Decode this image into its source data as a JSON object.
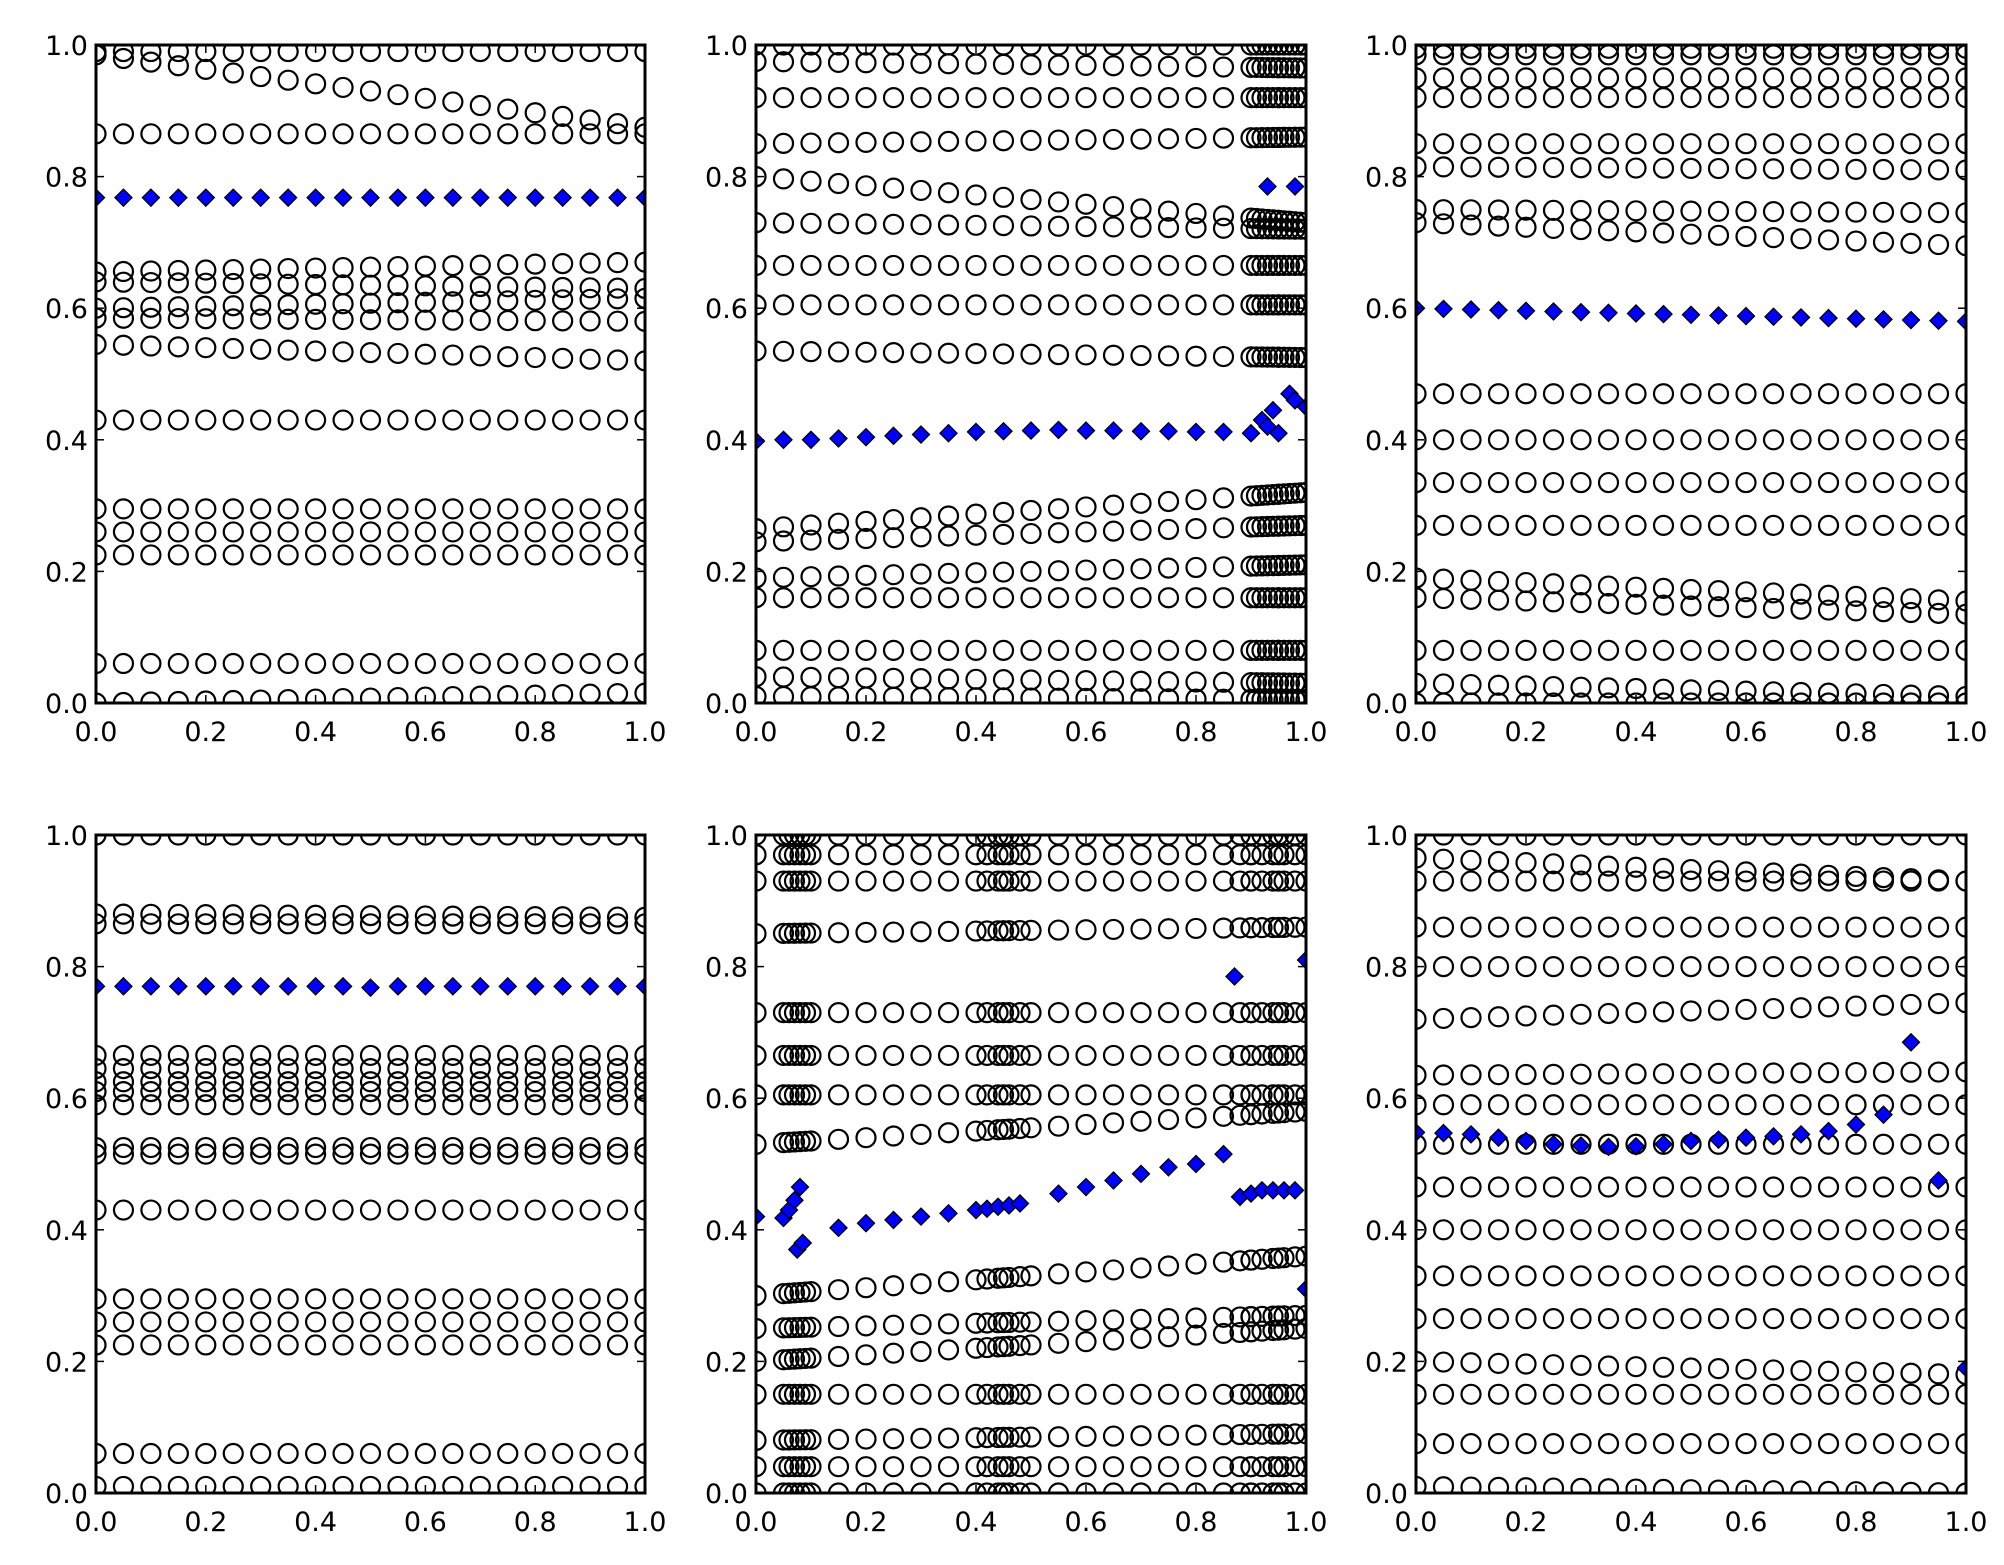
{
  "chart_data": [
    {
      "type": "scatter",
      "title": "",
      "xlabel": "",
      "ylabel": "",
      "xlim": [
        0,
        1
      ],
      "ylim": [
        0,
        1
      ],
      "grid": false,
      "xticks": [
        "0.0",
        "0.2",
        "0.4",
        "0.6",
        "0.8",
        "1.0"
      ],
      "yticks": [
        "0.0",
        "0.2",
        "0.4",
        "0.6",
        "0.8",
        "1.0"
      ],
      "circle_rows": [
        [
          0.99,
          0.99
        ],
        [
          0.985,
          0.875
        ],
        [
          0.865,
          0.865
        ],
        [
          0.655,
          0.67
        ],
        [
          0.64,
          0.63
        ],
        [
          0.6,
          0.615
        ],
        [
          0.585,
          0.58
        ],
        [
          0.545,
          0.52
        ],
        [
          0.43,
          0.43
        ],
        [
          0.295,
          0.295
        ],
        [
          0.26,
          0.26
        ],
        [
          0.225,
          0.225
        ],
        [
          0.06,
          0.06
        ],
        [
          0.0,
          0.015
        ]
      ],
      "dense_x": [],
      "diamonds": {
        "x": [
          0,
          0.05,
          0.1,
          0.15,
          0.2,
          0.25,
          0.3,
          0.35,
          0.4,
          0.45,
          0.5,
          0.55,
          0.6,
          0.65,
          0.7,
          0.75,
          0.8,
          0.85,
          0.9,
          0.95,
          1.0
        ],
        "y": [
          0.768,
          0.768,
          0.768,
          0.768,
          0.768,
          0.768,
          0.768,
          0.768,
          0.768,
          0.768,
          0.768,
          0.768,
          0.768,
          0.768,
          0.768,
          0.768,
          0.768,
          0.768,
          0.768,
          0.768,
          0.768
        ]
      },
      "colors": {
        "circle": "#000000",
        "diamond": "#0000ff"
      }
    },
    {
      "type": "scatter",
      "title": "",
      "xlabel": "",
      "ylabel": "",
      "xlim": [
        0,
        1
      ],
      "ylim": [
        0,
        1
      ],
      "grid": false,
      "xticks": [
        "0.0",
        "0.2",
        "0.4",
        "0.6",
        "0.8",
        "1.0"
      ],
      "yticks": [
        "0.0",
        "0.2",
        "0.4",
        "0.6",
        "0.8",
        "1.0"
      ],
      "circle_rows": [
        [
          1.0,
          1.0
        ],
        [
          0.975,
          0.965
        ],
        [
          0.92,
          0.92
        ],
        [
          0.85,
          0.86
        ],
        [
          0.8,
          0.73
        ],
        [
          0.73,
          0.72
        ],
        [
          0.665,
          0.665
        ],
        [
          0.605,
          0.605
        ],
        [
          0.535,
          0.525
        ],
        [
          0.265,
          0.32
        ],
        [
          0.245,
          0.27
        ],
        [
          0.19,
          0.21
        ],
        [
          0.16,
          0.16
        ],
        [
          0.08,
          0.08
        ],
        [
          0.04,
          0.03
        ],
        [
          0.01,
          0.005
        ]
      ],
      "dense_x": [
        0.91,
        0.92,
        0.93,
        0.94,
        0.95,
        0.96,
        0.97,
        0.98,
        0.99,
        1.0
      ],
      "diamonds": {
        "x": [
          0,
          0.05,
          0.1,
          0.15,
          0.2,
          0.25,
          0.3,
          0.35,
          0.4,
          0.45,
          0.5,
          0.55,
          0.6,
          0.65,
          0.7,
          0.75,
          0.8,
          0.85,
          0.9,
          0.92,
          0.93,
          0.94,
          0.95,
          0.97,
          0.98,
          1.0,
          0.93,
          0.98
        ],
        "y": [
          0.398,
          0.4,
          0.4,
          0.402,
          0.404,
          0.406,
          0.408,
          0.41,
          0.412,
          0.413,
          0.414,
          0.415,
          0.414,
          0.414,
          0.413,
          0.413,
          0.412,
          0.412,
          0.41,
          0.43,
          0.42,
          0.445,
          0.41,
          0.47,
          0.46,
          0.45,
          0.785,
          0.785
        ]
      },
      "colors": {
        "circle": "#000000",
        "diamond": "#0000ff"
      }
    },
    {
      "type": "scatter",
      "title": "",
      "xlabel": "",
      "ylabel": "",
      "xlim": [
        0,
        1
      ],
      "ylim": [
        0,
        1
      ],
      "grid": false,
      "xticks": [
        "0.0",
        "0.2",
        "0.4",
        "0.6",
        "0.8",
        "1.0"
      ],
      "yticks": [
        "0.0",
        "0.2",
        "0.4",
        "0.6",
        "0.8",
        "1.0"
      ],
      "circle_rows": [
        [
          0.995,
          0.995
        ],
        [
          0.985,
          0.985
        ],
        [
          0.95,
          0.95
        ],
        [
          0.92,
          0.92
        ],
        [
          0.85,
          0.85
        ],
        [
          0.815,
          0.81
        ],
        [
          0.75,
          0.745
        ],
        [
          0.73,
          0.695
        ],
        [
          0.47,
          0.47
        ],
        [
          0.4,
          0.4
        ],
        [
          0.335,
          0.335
        ],
        [
          0.27,
          0.27
        ],
        [
          0.19,
          0.155
        ],
        [
          0.16,
          0.135
        ],
        [
          0.08,
          0.08
        ],
        [
          0.03,
          0.01
        ],
        [
          0.0,
          0.0
        ]
      ],
      "dense_x": [],
      "diamonds": {
        "x": [
          0,
          0.05,
          0.1,
          0.15,
          0.2,
          0.25,
          0.3,
          0.35,
          0.4,
          0.45,
          0.5,
          0.55,
          0.6,
          0.65,
          0.7,
          0.75,
          0.8,
          0.85,
          0.9,
          0.95,
          1.0
        ],
        "y": [
          0.6,
          0.599,
          0.598,
          0.597,
          0.596,
          0.595,
          0.594,
          0.593,
          0.592,
          0.591,
          0.59,
          0.589,
          0.588,
          0.587,
          0.586,
          0.585,
          0.584,
          0.583,
          0.582,
          0.581,
          0.58
        ]
      },
      "colors": {
        "circle": "#000000",
        "diamond": "#0000ff"
      }
    },
    {
      "type": "scatter",
      "title": "",
      "xlabel": "",
      "ylabel": "",
      "xlim": [
        0,
        1
      ],
      "ylim": [
        0,
        1
      ],
      "grid": false,
      "xticks": [
        "0.0",
        "0.2",
        "0.4",
        "0.6",
        "0.8",
        "1.0"
      ],
      "yticks": [
        "0.0",
        "0.2",
        "0.4",
        "0.6",
        "0.8",
        "1.0"
      ],
      "circle_rows": [
        [
          1.0,
          1.0
        ],
        [
          0.88,
          0.875
        ],
        [
          0.865,
          0.865
        ],
        [
          0.665,
          0.665
        ],
        [
          0.645,
          0.645
        ],
        [
          0.625,
          0.625
        ],
        [
          0.61,
          0.61
        ],
        [
          0.59,
          0.59
        ],
        [
          0.525,
          0.525
        ],
        [
          0.515,
          0.515
        ],
        [
          0.43,
          0.43
        ],
        [
          0.295,
          0.295
        ],
        [
          0.26,
          0.26
        ],
        [
          0.225,
          0.225
        ],
        [
          0.06,
          0.06
        ],
        [
          0.01,
          0.01
        ]
      ],
      "dense_x": [],
      "diamonds": {
        "x": [
          0,
          0.05,
          0.1,
          0.15,
          0.2,
          0.25,
          0.3,
          0.35,
          0.4,
          0.45,
          0.5,
          0.55,
          0.6,
          0.65,
          0.7,
          0.75,
          0.8,
          0.85,
          0.9,
          0.95,
          1.0
        ],
        "y": [
          0.77,
          0.77,
          0.77,
          0.77,
          0.77,
          0.77,
          0.77,
          0.77,
          0.77,
          0.77,
          0.768,
          0.77,
          0.77,
          0.77,
          0.77,
          0.77,
          0.77,
          0.77,
          0.77,
          0.77,
          0.77
        ]
      },
      "colors": {
        "circle": "#000000",
        "diamond": "#0000ff"
      }
    },
    {
      "type": "scatter",
      "title": "",
      "xlabel": "",
      "ylabel": "",
      "xlim": [
        0,
        1
      ],
      "ylim": [
        0,
        1
      ],
      "grid": false,
      "xticks": [
        "0.0",
        "0.2",
        "0.4",
        "0.6",
        "0.8",
        "1.0"
      ],
      "yticks": [
        "0.0",
        "0.2",
        "0.4",
        "0.6",
        "0.8",
        "1.0"
      ],
      "circle_rows": [
        [
          1.0,
          1.0
        ],
        [
          0.97,
          0.97
        ],
        [
          0.93,
          0.93
        ],
        [
          0.85,
          0.86
        ],
        [
          0.73,
          0.73
        ],
        [
          0.665,
          0.665
        ],
        [
          0.605,
          0.605
        ],
        [
          0.53,
          0.58
        ],
        [
          0.3,
          0.36
        ],
        [
          0.25,
          0.27
        ],
        [
          0.2,
          0.25
        ],
        [
          0.15,
          0.15
        ],
        [
          0.08,
          0.09
        ],
        [
          0.04,
          0.04
        ],
        [
          0.0,
          0.0
        ]
      ],
      "dense_x": [
        0.06,
        0.07,
        0.08,
        0.09,
        0.42,
        0.44,
        0.46,
        0.48,
        0.88,
        0.9,
        0.92,
        0.94,
        0.96,
        0.98
      ],
      "diamonds": {
        "x": [
          0,
          0.05,
          0.06,
          0.07,
          0.08,
          0.075,
          0.085,
          0.15,
          0.2,
          0.25,
          0.3,
          0.35,
          0.4,
          0.42,
          0.44,
          0.46,
          0.48,
          0.55,
          0.6,
          0.65,
          0.7,
          0.75,
          0.8,
          0.85,
          0.87,
          0.88,
          0.9,
          0.92,
          0.94,
          0.96,
          0.98,
          1.0,
          1.0
        ],
        "y": [
          0.42,
          0.418,
          0.43,
          0.445,
          0.465,
          0.37,
          0.38,
          0.403,
          0.41,
          0.415,
          0.42,
          0.425,
          0.43,
          0.432,
          0.435,
          0.437,
          0.44,
          0.455,
          0.465,
          0.475,
          0.485,
          0.495,
          0.5,
          0.515,
          0.785,
          0.45,
          0.455,
          0.46,
          0.46,
          0.46,
          0.46,
          0.81,
          0.31
        ]
      },
      "colors": {
        "circle": "#000000",
        "diamond": "#0000ff"
      }
    },
    {
      "type": "scatter",
      "title": "",
      "xlabel": "",
      "ylabel": "",
      "xlim": [
        0,
        1
      ],
      "ylim": [
        0,
        1
      ],
      "grid": false,
      "xticks": [
        "0.0",
        "0.2",
        "0.4",
        "0.6",
        "0.8",
        "1.0"
      ],
      "yticks": [
        "0.0",
        "0.2",
        "0.4",
        "0.6",
        "0.8",
        "1.0"
      ],
      "circle_rows": [
        [
          1.0,
          1.0
        ],
        [
          0.965,
          0.93
        ],
        [
          0.93,
          0.93
        ],
        [
          0.86,
          0.86
        ],
        [
          0.8,
          0.8
        ],
        [
          0.72,
          0.745
        ],
        [
          0.635,
          0.64
        ],
        [
          0.59,
          0.59
        ],
        [
          0.53,
          0.53
        ],
        [
          0.465,
          0.465
        ],
        [
          0.4,
          0.4
        ],
        [
          0.33,
          0.33
        ],
        [
          0.265,
          0.265
        ],
        [
          0.2,
          0.18
        ],
        [
          0.15,
          0.15
        ],
        [
          0.075,
          0.075
        ],
        [
          0.01,
          0.0
        ]
      ],
      "dense_x": [],
      "diamonds": {
        "x": [
          0,
          0.05,
          0.1,
          0.15,
          0.2,
          0.25,
          0.3,
          0.35,
          0.4,
          0.45,
          0.5,
          0.55,
          0.6,
          0.65,
          0.7,
          0.75,
          0.8,
          0.85,
          0.9,
          0.95,
          1.0
        ],
        "y": [
          0.548,
          0.547,
          0.545,
          0.54,
          0.535,
          0.53,
          0.528,
          0.526,
          0.527,
          0.53,
          0.535,
          0.537,
          0.54,
          0.542,
          0.545,
          0.55,
          0.56,
          0.575,
          0.685,
          0.475,
          0.19
        ]
      },
      "colors": {
        "circle": "#000000",
        "diamond": "#0000ff"
      }
    }
  ]
}
